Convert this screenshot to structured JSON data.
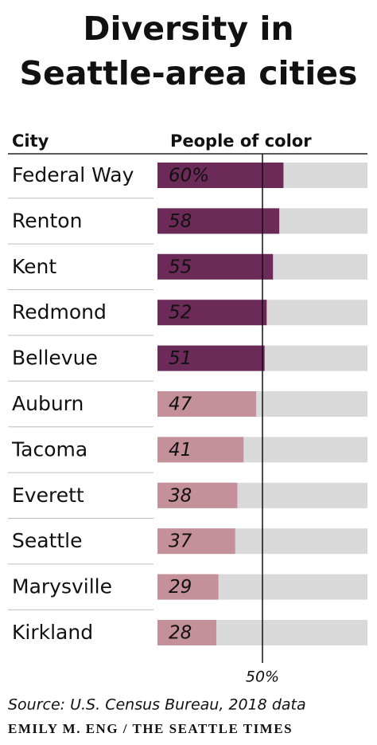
{
  "chart_data": {
    "type": "bar",
    "orientation": "horizontal",
    "title": "Diversity in Seattle-area cities",
    "category_header": "City",
    "value_header": "People of color",
    "categories": [
      "Federal Way",
      "Renton",
      "Kent",
      "Redmond",
      "Bellevue",
      "Auburn",
      "Tacoma",
      "Everett",
      "Seattle",
      "Marysville",
      "Kirkland"
    ],
    "values": [
      60,
      58,
      55,
      52,
      51,
      47,
      41,
      38,
      37,
      29,
      28
    ],
    "value_labels": [
      "60%",
      "58",
      "55",
      "52",
      "51",
      "47",
      "41",
      "38",
      "37",
      "29",
      "28"
    ],
    "colors": [
      "#6b2a57",
      "#6b2a57",
      "#6b2a57",
      "#6b2a57",
      "#6b2a57",
      "#c4909a",
      "#c4909a",
      "#c4909a",
      "#c4909a",
      "#c4909a",
      "#c4909a"
    ],
    "value_label_colors": [
      "#ffffff",
      "#ffffff",
      "#ffffff",
      "#ffffff",
      "#ffffff",
      "#2a1a22",
      "#2a1a22",
      "#2a1a22",
      "#2a1a22",
      "#2a1a22",
      "#2a1a22"
    ],
    "track_color": "#d9d9d9",
    "xlim": [
      0,
      100
    ],
    "reference_line": {
      "value": 50,
      "label": "50%"
    },
    "source": "Source: U.S. Census Bureau, 2018 data",
    "credit": "EMILY M. ENG / THE SEATTLE TIMES"
  }
}
